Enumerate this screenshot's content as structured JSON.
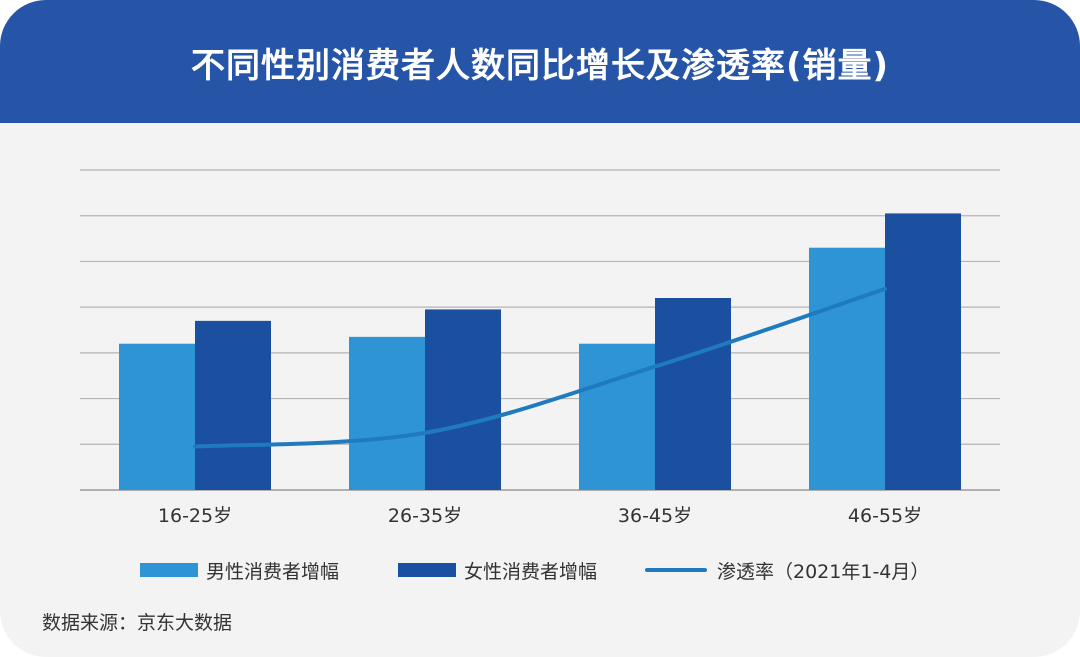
{
  "title": "不同性别消费者人数同比增长及渗透率(销量)",
  "source": "数据来源：京东大数据",
  "colors": {
    "header": "#2655a8",
    "male": "#2f94d4",
    "female": "#1b4f9f",
    "line": "#1f7ac0",
    "grid": "#b5b5b5",
    "background": "#f3f3f3"
  },
  "chart_data": {
    "type": "bar",
    "categories": [
      "16-25岁",
      "26-35岁",
      "36-45岁",
      "46-55岁"
    ],
    "ylim": [
      0,
      7
    ],
    "grid": true,
    "gridlines": 7,
    "legend_position": "bottom",
    "series": [
      {
        "name": "男性消费者增幅",
        "type": "bar",
        "values": [
          3.2,
          3.35,
          3.2,
          5.3
        ]
      },
      {
        "name": "女性消费者增幅",
        "type": "bar",
        "values": [
          3.7,
          3.95,
          4.2,
          6.05
        ]
      },
      {
        "name": "渗透率（2021年1-4月）",
        "type": "line",
        "values": [
          0.95,
          1.25,
          2.7,
          4.4
        ]
      }
    ]
  }
}
